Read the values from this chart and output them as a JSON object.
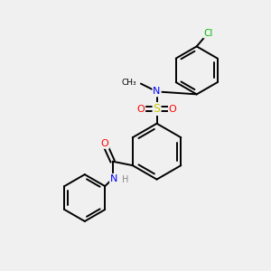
{
  "background_color": "#f0f0f0",
  "bond_color": "#000000",
  "line_width": 1.4,
  "atom_colors": {
    "N": "#0000ff",
    "O": "#ff0000",
    "S": "#cccc00",
    "Cl": "#00bb00",
    "H": "#888888",
    "C": "#000000"
  },
  "figsize": [
    3.0,
    3.0
  ],
  "dpi": 100
}
